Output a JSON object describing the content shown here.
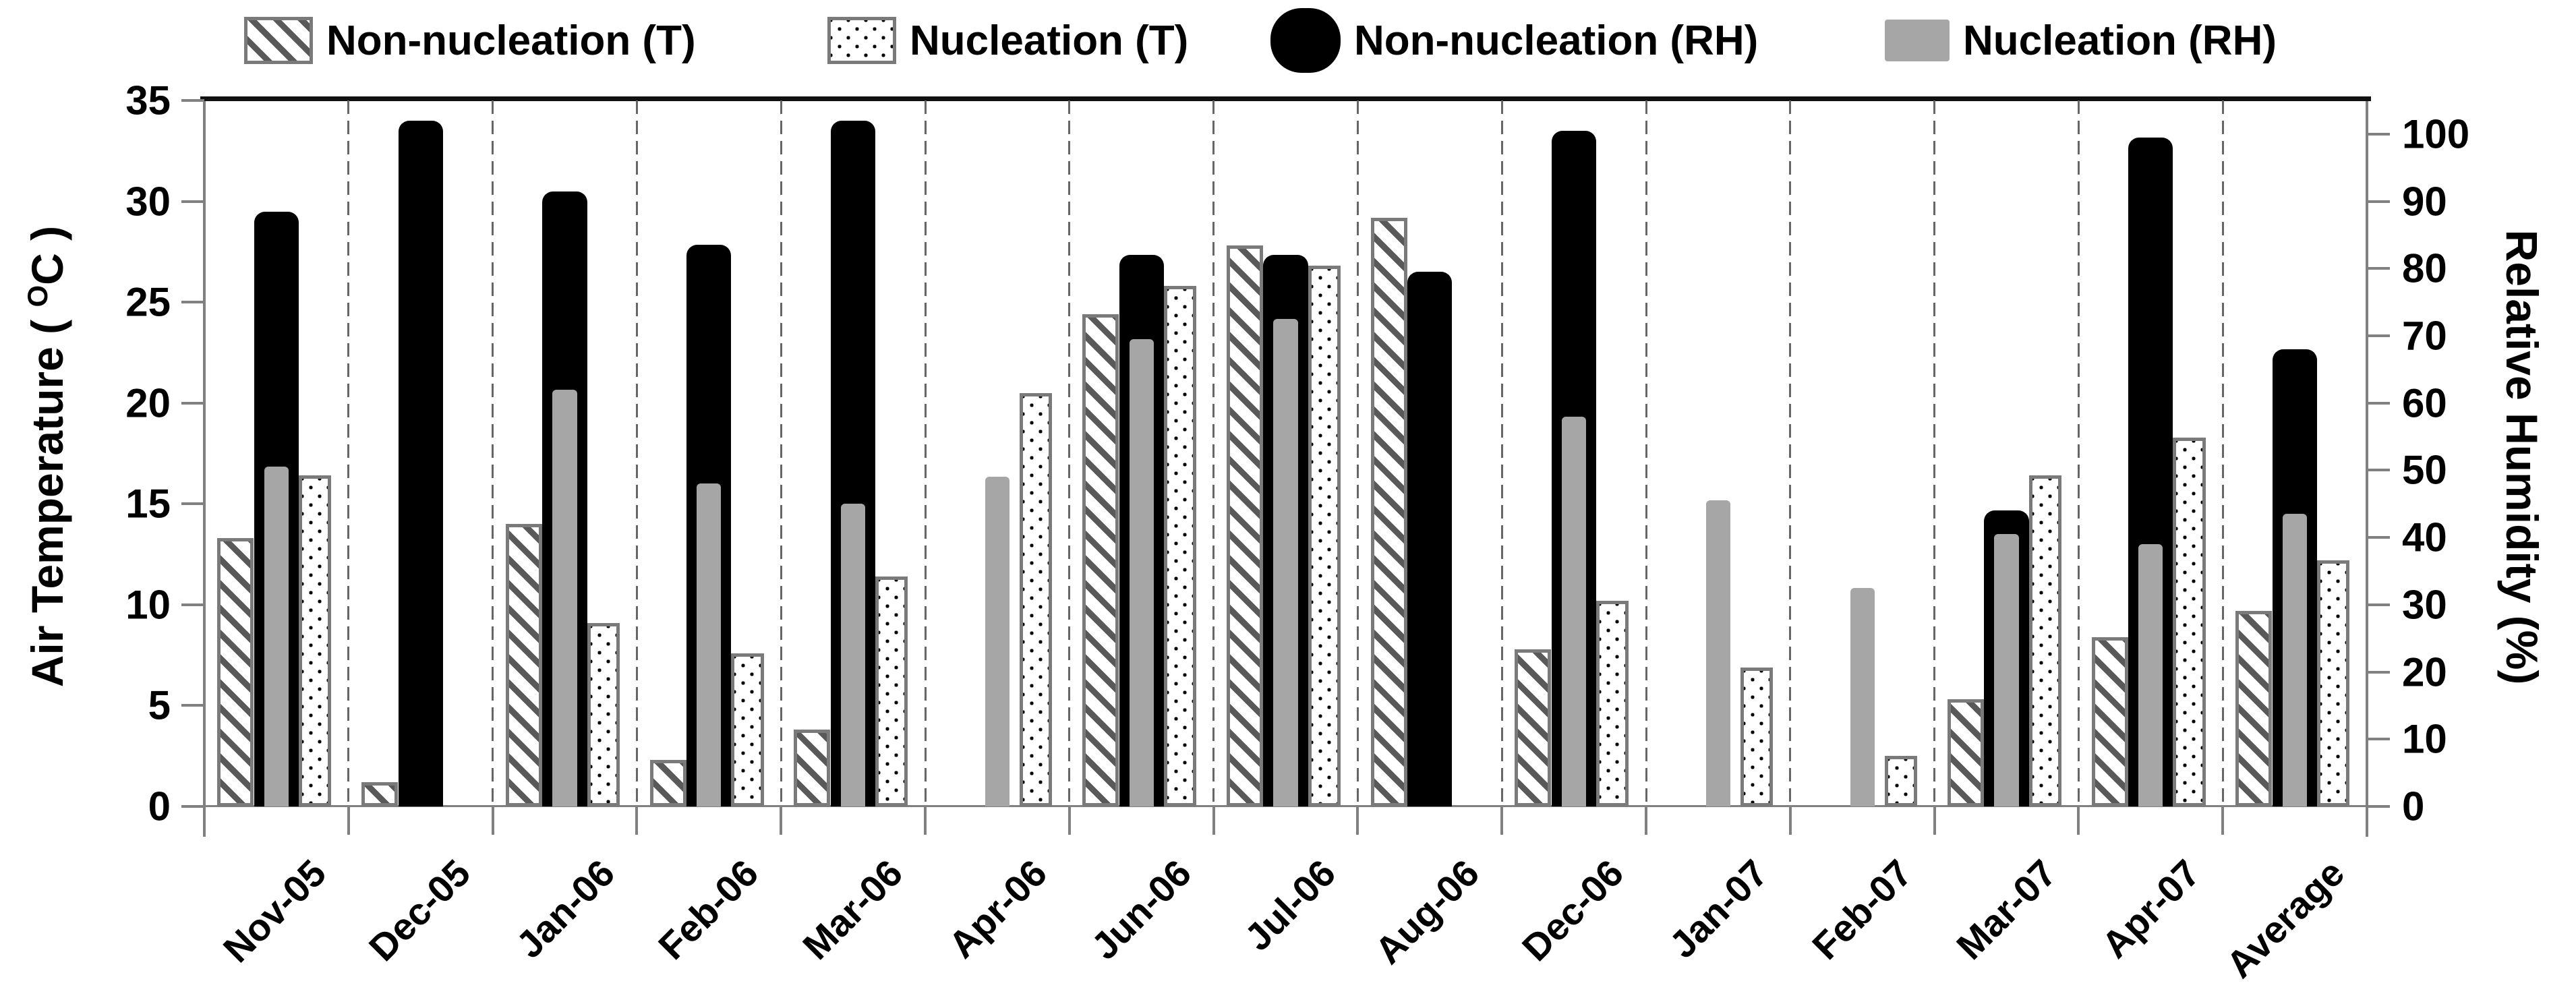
{
  "legend": {
    "items": [
      {
        "label": "Non-nucleation (T)",
        "swatch": "hatched",
        "series_key": "non_nucleation_T"
      },
      {
        "label": "Nucleation (T)",
        "swatch": "dotted",
        "series_key": "nucleation_T"
      },
      {
        "label": "Non-nucleation (RH)",
        "swatch": "black",
        "series_key": "non_nucleation_RH"
      },
      {
        "label": "Nucleation (RH)",
        "swatch": "gray",
        "series_key": "nucleation_RH"
      }
    ]
  },
  "y_axis_left": {
    "title_prefix": "Air Temperature ( ",
    "title_sup": "O",
    "title_suffix": "C )",
    "ticks": [
      0,
      5,
      10,
      15,
      20,
      25,
      30,
      35
    ],
    "min": 0,
    "max": 35
  },
  "y_axis_right": {
    "title": "Relative Humidity (%)",
    "ticks": [
      0,
      10,
      20,
      30,
      40,
      50,
      60,
      70,
      80,
      90,
      100
    ],
    "min": 0,
    "max": 105
  },
  "colors": {
    "bar_black": "#000000",
    "bar_gray": "#a6a6a6",
    "hatch_stripe": "#595959",
    "bar_outline": "#7a7a7a",
    "axis": "#808080",
    "separator": "#666666",
    "text": "#000000"
  },
  "chart_data": {
    "type": "bar",
    "title": "",
    "categories": [
      "Nov-05",
      "Dec-05",
      "Jan-06",
      "Feb-06",
      "Mar-06",
      "Apr-06",
      "Jun-06",
      "Jul-06",
      "Aug-06",
      "Dec-06",
      "Jan-07",
      "Feb-07",
      "Mar-07",
      "Apr-07",
      "Average"
    ],
    "series": [
      {
        "name": "Non-nucleation (T)",
        "axis": "left",
        "unit": "degC",
        "style": "hatched",
        "values": [
          13.3,
          1.2,
          14.0,
          2.3,
          3.8,
          null,
          24.4,
          27.8,
          29.2,
          7.8,
          null,
          null,
          5.3,
          8.4,
          9.7
        ]
      },
      {
        "name": "Nucleation (T)",
        "axis": "left",
        "unit": "degC",
        "style": "dotted",
        "values": [
          16.4,
          null,
          9.1,
          7.6,
          11.4,
          20.5,
          25.8,
          26.8,
          null,
          10.2,
          6.9,
          2.5,
          16.4,
          18.3,
          12.2
        ]
      },
      {
        "name": "Non-nucleation (RH)",
        "axis": "right",
        "unit": "%",
        "style": "black",
        "values": [
          88.5,
          102,
          91.5,
          83.5,
          102,
          null,
          82,
          82,
          79.5,
          100.5,
          null,
          null,
          44,
          99.5,
          68
        ]
      },
      {
        "name": "Nucleation (RH)",
        "axis": "right",
        "unit": "%",
        "style": "gray",
        "values": [
          50.5,
          null,
          62,
          48,
          45,
          49,
          69.5,
          72.5,
          null,
          58,
          45.5,
          32.5,
          40.5,
          39,
          43.5
        ]
      }
    ],
    "xlabel": "",
    "ylabel_left": "Air Temperature (°C)",
    "ylabel_right": "Relative Humidity (%)",
    "ylim_left": [
      0,
      35
    ],
    "ylim_right": [
      0,
      105
    ],
    "legend_position": "top",
    "grid": "vertical-dashed-category-separators"
  }
}
